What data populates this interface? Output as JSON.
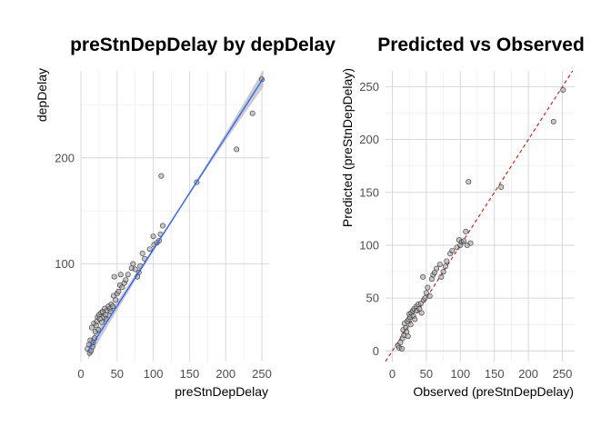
{
  "chart_data": [
    {
      "type": "scatter",
      "title": "preStnDepDelay by depDelay",
      "xlabel": "preStnDepDelay",
      "ylabel": "depDelay",
      "xlim": [
        0,
        260
      ],
      "ylim": [
        8,
        282
      ],
      "xticks": [
        0,
        50,
        100,
        150,
        200,
        250
      ],
      "yticks": [
        100,
        200
      ],
      "grid": true,
      "colors": {
        "points": "#999999",
        "point_edge": "#333333",
        "fit": "#3366ff",
        "band": "#bbbbbb"
      },
      "fit": {
        "method": "linear",
        "x": [
          10,
          252
        ],
        "y": [
          18,
          275
        ],
        "se_band": true
      },
      "points": [
        [
          9,
          20
        ],
        [
          11,
          24
        ],
        [
          12,
          16
        ],
        [
          13,
          28
        ],
        [
          14,
          18
        ],
        [
          15,
          40
        ],
        [
          16,
          22
        ],
        [
          17,
          26
        ],
        [
          18,
          44
        ],
        [
          19,
          30
        ],
        [
          20,
          36
        ],
        [
          21,
          42
        ],
        [
          22,
          46
        ],
        [
          23,
          50
        ],
        [
          24,
          38
        ],
        [
          25,
          52
        ],
        [
          26,
          48
        ],
        [
          28,
          54
        ],
        [
          29,
          45
        ],
        [
          30,
          55
        ],
        [
          32,
          50
        ],
        [
          33,
          58
        ],
        [
          34,
          52
        ],
        [
          35,
          48
        ],
        [
          36,
          56
        ],
        [
          38,
          60
        ],
        [
          40,
          58
        ],
        [
          41,
          55
        ],
        [
          42,
          62
        ],
        [
          44,
          60
        ],
        [
          45,
          70
        ],
        [
          46,
          88
        ],
        [
          48,
          66
        ],
        [
          50,
          72
        ],
        [
          52,
          74
        ],
        [
          54,
          80
        ],
        [
          55,
          90
        ],
        [
          57,
          78
        ],
        [
          60,
          82
        ],
        [
          62,
          85
        ],
        [
          65,
          90
        ],
        [
          70,
          96
        ],
        [
          72,
          100
        ],
        [
          75,
          95
        ],
        [
          78,
          88
        ],
        [
          80,
          92
        ],
        [
          82,
          98
        ],
        [
          85,
          110
        ],
        [
          88,
          105
        ],
        [
          95,
          114
        ],
        [
          100,
          126
        ],
        [
          101,
          118
        ],
        [
          105,
          120
        ],
        [
          108,
          122
        ],
        [
          110,
          128
        ],
        [
          111,
          183
        ],
        [
          113,
          136
        ],
        [
          160,
          177
        ],
        [
          215,
          208
        ],
        [
          237,
          242
        ],
        [
          250,
          274
        ]
      ]
    },
    {
      "type": "scatter",
      "title": "Predicted vs Observed",
      "xlabel": "Observed (preStnDepDelay)",
      "ylabel": "Predicted (preStnDepDelay)",
      "xlim": [
        -10,
        268
      ],
      "ylim": [
        -10,
        265
      ],
      "xticks": [
        0,
        50,
        100,
        150,
        200,
        250
      ],
      "yticks": [
        0,
        50,
        100,
        150,
        200,
        250
      ],
      "grid": true,
      "colors": {
        "points": "#999999",
        "point_edge": "#333333",
        "reference": "#cc0000"
      },
      "reference_line": {
        "type": "identity",
        "style": "dashed"
      },
      "points": [
        [
          8,
          5
        ],
        [
          10,
          3
        ],
        [
          12,
          8
        ],
        [
          14,
          2
        ],
        [
          15,
          12
        ],
        [
          16,
          20
        ],
        [
          17,
          15
        ],
        [
          18,
          26
        ],
        [
          20,
          22
        ],
        [
          21,
          18
        ],
        [
          22,
          28
        ],
        [
          23,
          14
        ],
        [
          24,
          30
        ],
        [
          25,
          35
        ],
        [
          26,
          32
        ],
        [
          27,
          25
        ],
        [
          28,
          36
        ],
        [
          30,
          38
        ],
        [
          31,
          33
        ],
        [
          32,
          40
        ],
        [
          33,
          30
        ],
        [
          35,
          42
        ],
        [
          36,
          38
        ],
        [
          38,
          44
        ],
        [
          40,
          40
        ],
        [
          42,
          45
        ],
        [
          43,
          36
        ],
        [
          45,
          70
        ],
        [
          46,
          48
        ],
        [
          48,
          50
        ],
        [
          50,
          55
        ],
        [
          52,
          60
        ],
        [
          55,
          52
        ],
        [
          58,
          68
        ],
        [
          60,
          72
        ],
        [
          62,
          74
        ],
        [
          65,
          78
        ],
        [
          70,
          82
        ],
        [
          72,
          70
        ],
        [
          75,
          75
        ],
        [
          78,
          80
        ],
        [
          80,
          85
        ],
        [
          85,
          92
        ],
        [
          88,
          95
        ],
        [
          95,
          98
        ],
        [
          98,
          105
        ],
        [
          100,
          100
        ],
        [
          102,
          103
        ],
        [
          105,
          104
        ],
        [
          108,
          113
        ],
        [
          110,
          100
        ],
        [
          112,
          160
        ],
        [
          115,
          102
        ],
        [
          160,
          155
        ],
        [
          237,
          217
        ],
        [
          251,
          247
        ]
      ]
    }
  ]
}
